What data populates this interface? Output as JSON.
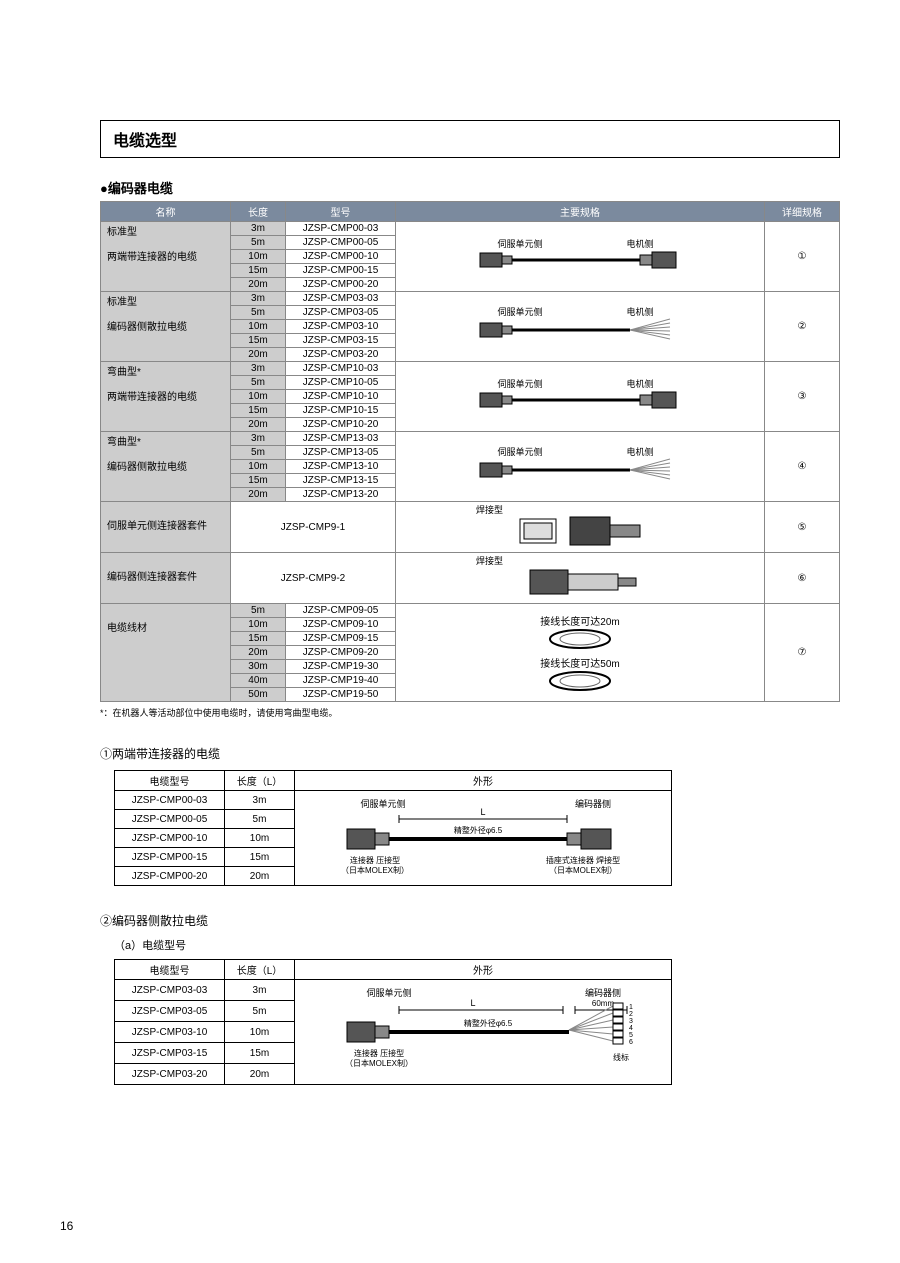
{
  "page_title": "电缆选型",
  "page_number": "16",
  "section1": {
    "heading": "编码器电缆",
    "columns": [
      "名称",
      "长度",
      "型号",
      "主要规格",
      "详细规格"
    ],
    "note": "*：在机器人等活动部位中使用电缆时，请使用弯曲型电缆。",
    "groups": [
      {
        "name1": "标准型",
        "name2": "两端带连接器的电缆",
        "rows": [
          {
            "len": "3m",
            "model": "JZSP-CMP00-03"
          },
          {
            "len": "5m",
            "model": "JZSP-CMP00-05"
          },
          {
            "len": "10m",
            "model": "JZSP-CMP00-10"
          },
          {
            "len": "15m",
            "model": "JZSP-CMP00-15"
          },
          {
            "len": "20m",
            "model": "JZSP-CMP00-20"
          }
        ],
        "spec_left": "伺服单元侧",
        "spec_right": "电机侧",
        "detail": "①",
        "diagram": "cable_both"
      },
      {
        "name1": "标准型",
        "name2": "编码器侧散拉电缆",
        "rows": [
          {
            "len": "3m",
            "model": "JZSP-CMP03-03"
          },
          {
            "len": "5m",
            "model": "JZSP-CMP03-05"
          },
          {
            "len": "10m",
            "model": "JZSP-CMP03-10"
          },
          {
            "len": "15m",
            "model": "JZSP-CMP03-15"
          },
          {
            "len": "20m",
            "model": "JZSP-CMP03-20"
          }
        ],
        "spec_left": "伺服单元侧",
        "spec_right": "电机侧",
        "detail": "②",
        "diagram": "cable_fan"
      },
      {
        "name1": "弯曲型*",
        "name2": "两端带连接器的电缆",
        "rows": [
          {
            "len": "3m",
            "model": "JZSP-CMP10-03"
          },
          {
            "len": "5m",
            "model": "JZSP-CMP10-05"
          },
          {
            "len": "10m",
            "model": "JZSP-CMP10-10"
          },
          {
            "len": "15m",
            "model": "JZSP-CMP10-15"
          },
          {
            "len": "20m",
            "model": "JZSP-CMP10-20"
          }
        ],
        "spec_left": "伺服单元侧",
        "spec_right": "电机侧",
        "detail": "③",
        "diagram": "cable_both"
      },
      {
        "name1": "弯曲型*",
        "name2": "编码器侧散拉电缆",
        "rows": [
          {
            "len": "3m",
            "model": "JZSP-CMP13-03"
          },
          {
            "len": "5m",
            "model": "JZSP-CMP13-05"
          },
          {
            "len": "10m",
            "model": "JZSP-CMP13-10"
          },
          {
            "len": "15m",
            "model": "JZSP-CMP13-15"
          },
          {
            "len": "20m",
            "model": "JZSP-CMP13-20"
          }
        ],
        "spec_left": "伺服单元侧",
        "spec_right": "电机侧",
        "detail": "④",
        "diagram": "cable_fan"
      },
      {
        "name1": "",
        "name2": "伺服单元侧连接器套件",
        "rows": [
          {
            "len": "",
            "model": "JZSP-CMP9-1"
          }
        ],
        "spec_left": "焊接型",
        "spec_right": "",
        "detail": "⑤",
        "diagram": "connector1"
      },
      {
        "name1": "",
        "name2": "编码器侧连接器套件",
        "rows": [
          {
            "len": "",
            "model": "JZSP-CMP9-2"
          }
        ],
        "spec_left": "焊接型",
        "spec_right": "",
        "detail": "⑥",
        "diagram": "connector2"
      },
      {
        "name1": "",
        "name2": "电缆线材",
        "rows": [
          {
            "len": "5m",
            "model": "JZSP-CMP09-05"
          },
          {
            "len": "10m",
            "model": "JZSP-CMP09-10"
          },
          {
            "len": "15m",
            "model": "JZSP-CMP09-15"
          },
          {
            "len": "20m",
            "model": "JZSP-CMP09-20"
          },
          {
            "len": "30m",
            "model": "JZSP-CMP19-30"
          },
          {
            "len": "40m",
            "model": "JZSP-CMP19-40"
          },
          {
            "len": "50m",
            "model": "JZSP-CMP19-50"
          }
        ],
        "spec_texts": [
          "接线长度可达20m",
          "接线长度可达50m"
        ],
        "detail": "⑦",
        "diagram": "coil"
      }
    ]
  },
  "section2": {
    "heading": "①两端带连接器的电缆",
    "columns": [
      "电缆型号",
      "长度（L）",
      "外形"
    ],
    "rows": [
      {
        "model": "JZSP-CMP00-03",
        "len": "3m"
      },
      {
        "model": "JZSP-CMP00-05",
        "len": "5m"
      },
      {
        "model": "JZSP-CMP00-10",
        "len": "10m"
      },
      {
        "model": "JZSP-CMP00-15",
        "len": "15m"
      },
      {
        "model": "JZSP-CMP00-20",
        "len": "20m"
      }
    ],
    "diagram": {
      "left_label": "伺服单元侧",
      "right_label": "编码器侧",
      "L": "L",
      "diameter": "精整外径φ6.5",
      "left_note1": "连接器 压接型",
      "left_note2": "（日本MOLEX制）",
      "right_note1": "插座式连接器 焊接型",
      "right_note2": "（日本MOLEX制）"
    }
  },
  "section3": {
    "heading": "②编码器侧散拉电缆",
    "subheading": "（a）电缆型号",
    "columns": [
      "电缆型号",
      "长度（L）",
      "外形"
    ],
    "rows": [
      {
        "model": "JZSP-CMP03-03",
        "len": "3m"
      },
      {
        "model": "JZSP-CMP03-05",
        "len": "5m"
      },
      {
        "model": "JZSP-CMP03-10",
        "len": "10m"
      },
      {
        "model": "JZSP-CMP03-15",
        "len": "15m"
      },
      {
        "model": "JZSP-CMP03-20",
        "len": "20m"
      }
    ],
    "diagram": {
      "left_label": "伺服单元侧",
      "right_label": "编码器侧",
      "right_mm": "60mm",
      "L": "L",
      "diameter": "精整外径φ6.5",
      "left_note1": "连接器  压接型",
      "left_note2": "（日本MOLEX制）",
      "wire_label": "线标",
      "wire_nums": [
        "1",
        "2",
        "3",
        "4",
        "5",
        "6"
      ]
    }
  }
}
